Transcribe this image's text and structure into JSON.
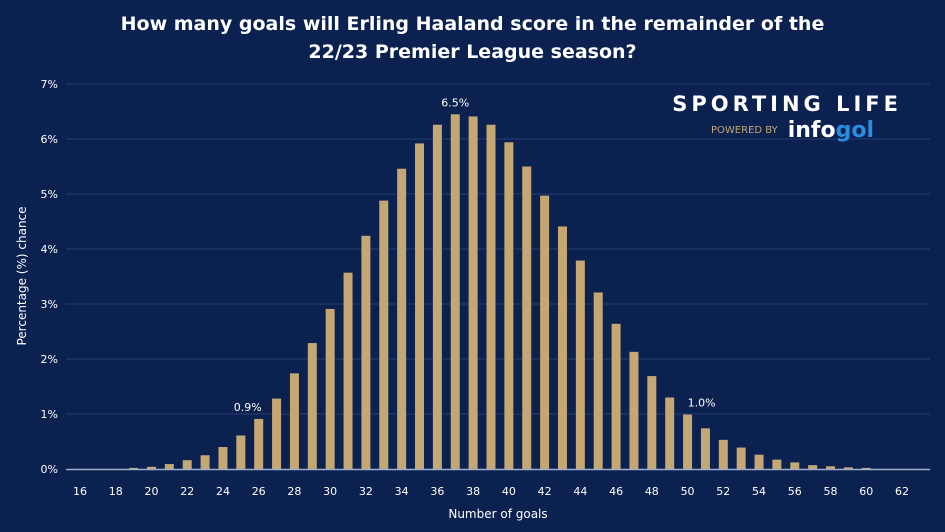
{
  "colors": {
    "background": "#0b2150",
    "bar": "#c4a773",
    "grid": "#24406e",
    "text": "#ffffff"
  },
  "logo": {
    "name": "SPORTING LIFE",
    "powered_by": "POWERED BY",
    "partner_a": "info",
    "partner_b": "gol"
  },
  "chart_data": {
    "type": "bar",
    "title": "How many goals will Erling Haaland score in the remainder of the 22/23 Premier League season?",
    "title_lines": [
      "How many goals will Erling Haaland score in the remainder of the",
      "22/23 Premier League season?"
    ],
    "xlabel": "Number of goals",
    "ylabel": "Percentage (%) chance",
    "ylim": [
      0,
      7
    ],
    "xlim": [
      16,
      62
    ],
    "grid": true,
    "yticks": [
      "0%",
      "1%",
      "2%",
      "3%",
      "4%",
      "5%",
      "6%",
      "7%"
    ],
    "xticks": [
      "16",
      "18",
      "20",
      "22",
      "24",
      "26",
      "28",
      "30",
      "32",
      "34",
      "36",
      "38",
      "40",
      "42",
      "44",
      "46",
      "48",
      "50",
      "52",
      "54",
      "56",
      "58",
      "60",
      "62"
    ],
    "categories": [
      16,
      17,
      18,
      19,
      20,
      21,
      22,
      23,
      24,
      25,
      26,
      27,
      28,
      29,
      30,
      31,
      32,
      33,
      34,
      35,
      36,
      37,
      38,
      39,
      40,
      41,
      42,
      43,
      44,
      45,
      46,
      47,
      48,
      49,
      50,
      51,
      52,
      53,
      54,
      55,
      56,
      57,
      58,
      59,
      60,
      61,
      62
    ],
    "values": [
      0,
      0,
      0,
      0.02,
      0.04,
      0.09,
      0.16,
      0.25,
      0.4,
      0.61,
      0.91,
      1.28,
      1.74,
      2.29,
      2.91,
      3.57,
      4.24,
      4.88,
      5.46,
      5.92,
      6.26,
      6.45,
      6.41,
      6.26,
      5.94,
      5.5,
      4.97,
      4.41,
      3.79,
      3.21,
      2.64,
      2.13,
      1.69,
      1.3,
      0.99,
      0.74,
      0.53,
      0.39,
      0.26,
      0.17,
      0.12,
      0.07,
      0.05,
      0.03,
      0.02,
      0,
      0
    ],
    "annotations": [
      {
        "x": 26,
        "text": "0.9%"
      },
      {
        "x": 37,
        "text": "6.5%"
      },
      {
        "x": 50,
        "text": "1.0%"
      }
    ]
  }
}
